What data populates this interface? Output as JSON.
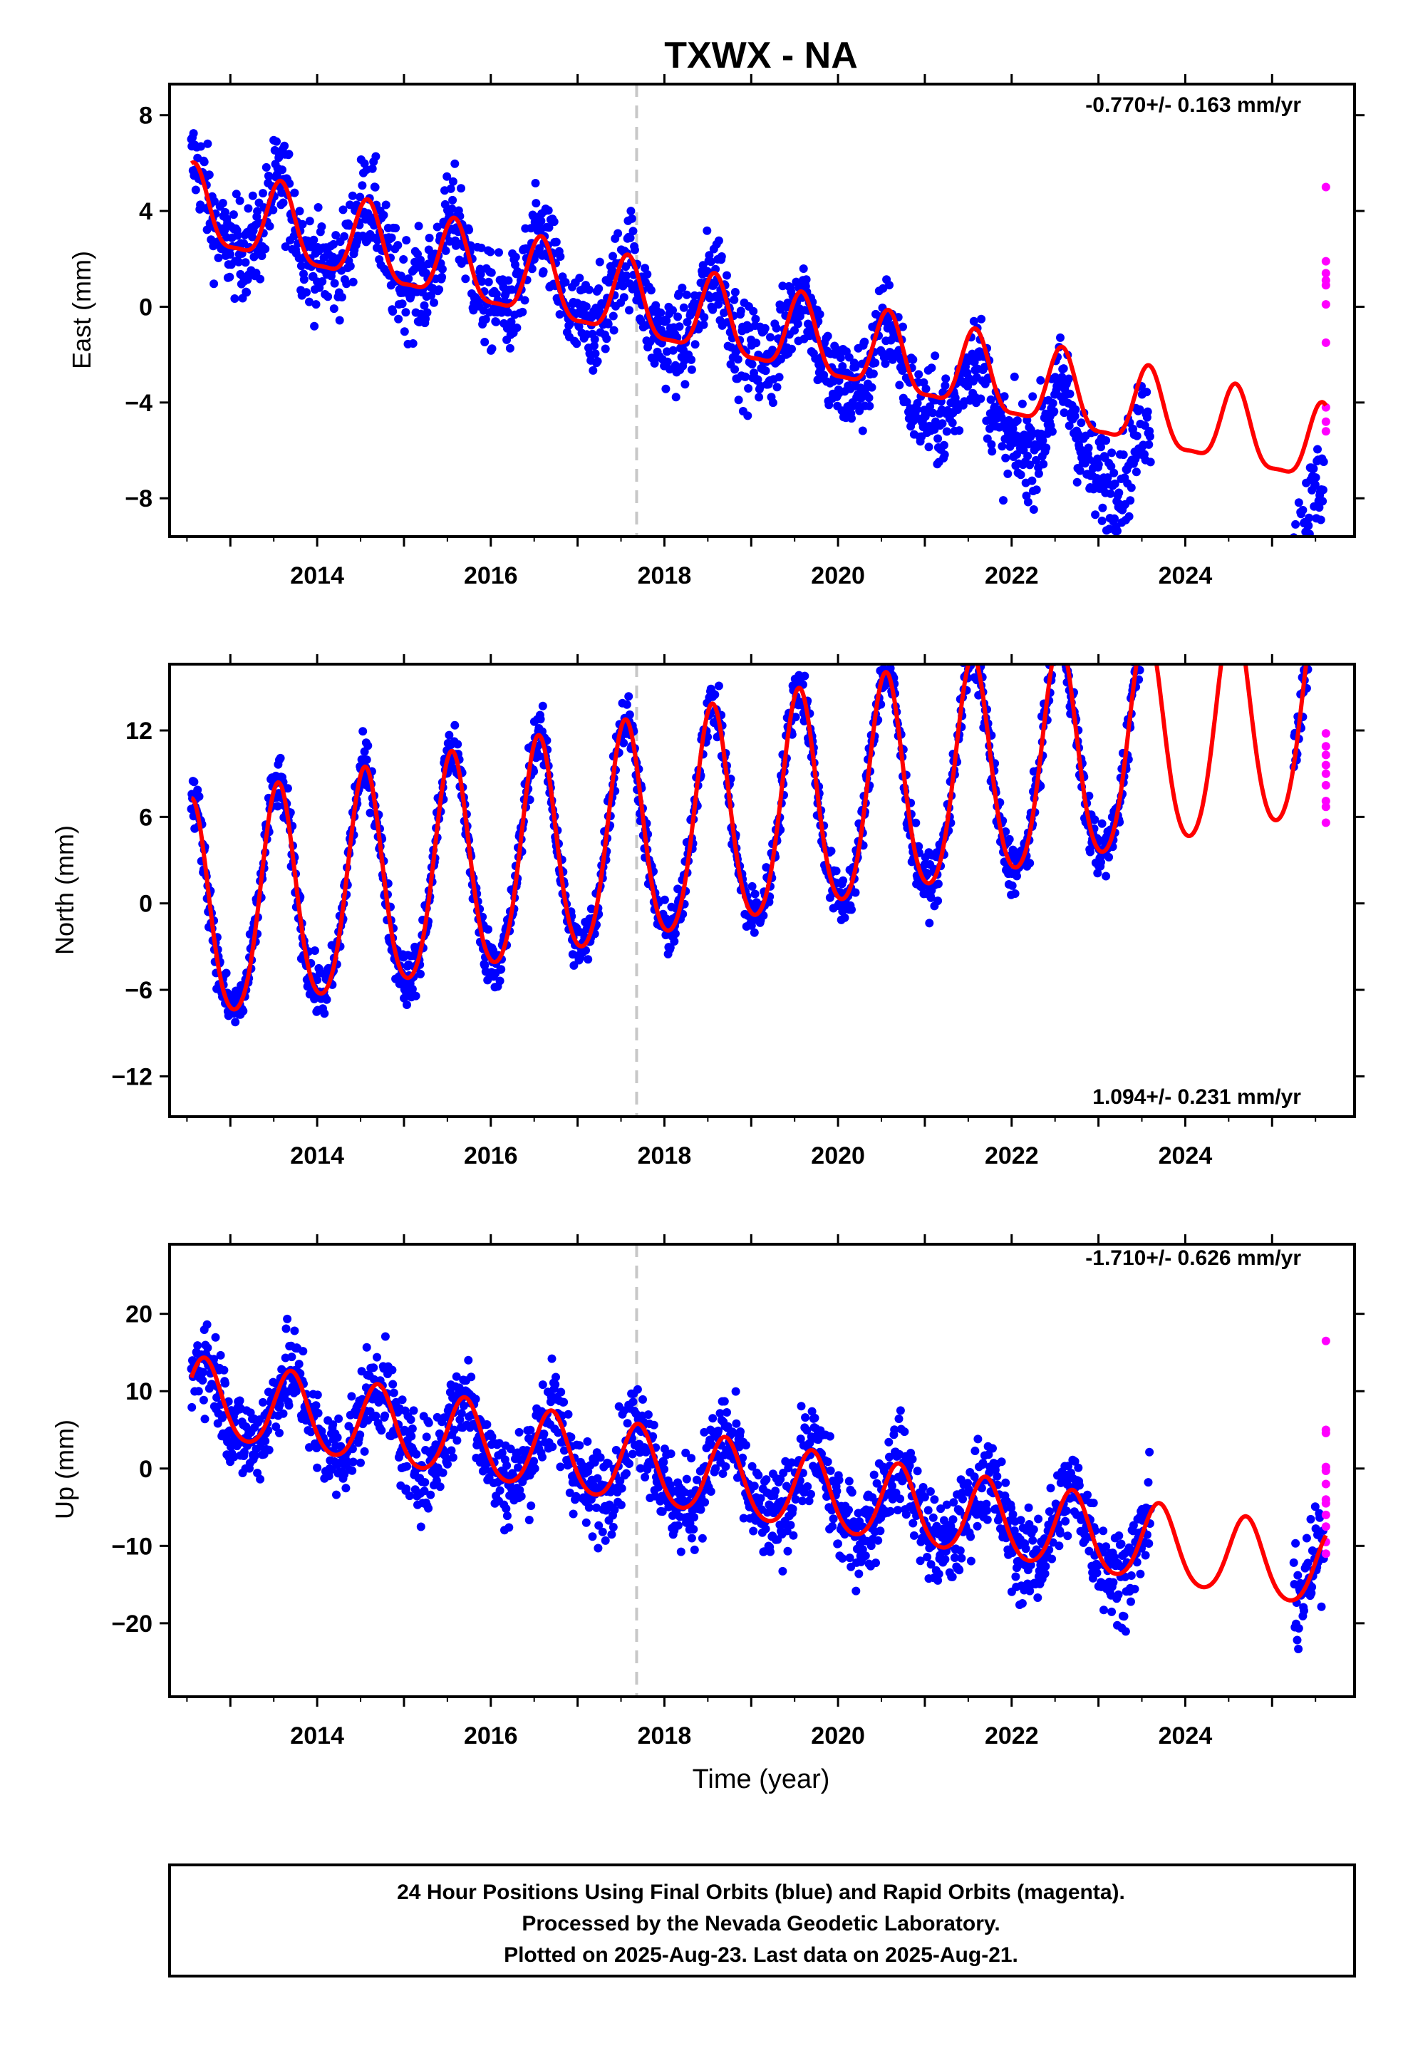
{
  "chart_data": {
    "type": "scatter",
    "title": "TXWX - NA",
    "xlabel": "Time (year)",
    "x_ticks": [
      "2014",
      "2016",
      "2018",
      "2020",
      "2022",
      "2024"
    ],
    "xlim": [
      2012.3,
      2025.95
    ],
    "vertical_marker_year": 2017.68,
    "legend_colors": {
      "final_orbits": "#0000ff",
      "rapid_orbits": "#ff00ff",
      "model_fit": "#ff0000",
      "marker_line": "#c8c8c8"
    },
    "panels": [
      {
        "name": "east",
        "ylabel": "East (mm)",
        "ylim": [
          -9.6,
          9.3
        ],
        "y_ticks": [
          -8,
          -4,
          0,
          4,
          8
        ],
        "rate_label": "-0.770+/- 0.163 mm/yr",
        "rate_position": "top-right",
        "model": {
          "offset": 4.0,
          "trend": -0.77,
          "amp": 1.6,
          "peak_phase": 0.58,
          "semi_amp": 0.45
        },
        "scatter": {
          "spread": 1.4,
          "end_drop": -2.2
        },
        "final_orbits_range": [
          2012.55,
          2023.6
        ],
        "final_orbits_tail": [
          2025.25,
          2025.6
        ],
        "rapid_orbits_x": 2025.62,
        "rapid_orbits_y": [
          5.0,
          1.9,
          1.4,
          1.1,
          0.9,
          0.1,
          -1.5,
          -4.2,
          -4.8,
          -5.2
        ]
      },
      {
        "name": "north",
        "ylabel": "North (mm)",
        "ylim": [
          -14.8,
          16.6
        ],
        "y_ticks": [
          -12,
          -6,
          0,
          6,
          12
        ],
        "rate_label": "1.094+/- 0.231 mm/yr",
        "rate_position": "bottom-right",
        "model": {
          "offset": -1.2,
          "trend": 1.094,
          "amp": 7.6,
          "peak_phase": 0.55,
          "semi_amp": 0.9
        },
        "scatter": {
          "spread": 1.3,
          "end_drop": 0
        },
        "final_orbits_range": [
          2012.55,
          2023.6
        ],
        "final_orbits_tail": [
          2025.25,
          2025.6
        ],
        "rapid_orbits_x": 2025.62,
        "rapid_orbits_y": [
          11.8,
          10.9,
          10.3,
          9.6,
          9.0,
          8.2,
          7.1,
          6.7,
          5.6
        ]
      },
      {
        "name": "up",
        "ylabel": "Up (mm)",
        "ylim": [
          -29.5,
          29
        ],
        "y_ticks": [
          -20,
          -10,
          0,
          10,
          20
        ],
        "rate_label": "-1.710+/- 0.626 mm/yr",
        "rate_position": "top-right",
        "model": {
          "offset": 9.0,
          "trend": -1.71,
          "amp": 5.0,
          "peak_phase": 0.7,
          "semi_amp": 0.6
        },
        "scatter": {
          "spread": 4.2,
          "end_drop": 0
        },
        "final_orbits_range": [
          2012.55,
          2023.6
        ],
        "final_orbits_tail": [
          2025.25,
          2025.6
        ],
        "rapid_orbits_x": 2025.62,
        "rapid_orbits_y": [
          16.5,
          5.0,
          4.6,
          0.2,
          -0.3,
          -2.0,
          -4.0,
          -4.5,
          -6.0,
          -7.5,
          -9.5,
          -11.0
        ]
      }
    ],
    "footer_lines": [
      "24 Hour Positions Using Final Orbits (blue) and Rapid Orbits (magenta).",
      "Processed by the Nevada Geodetic Laboratory.",
      "Plotted on 2025-Aug-23. Last data on 2025-Aug-21."
    ]
  }
}
